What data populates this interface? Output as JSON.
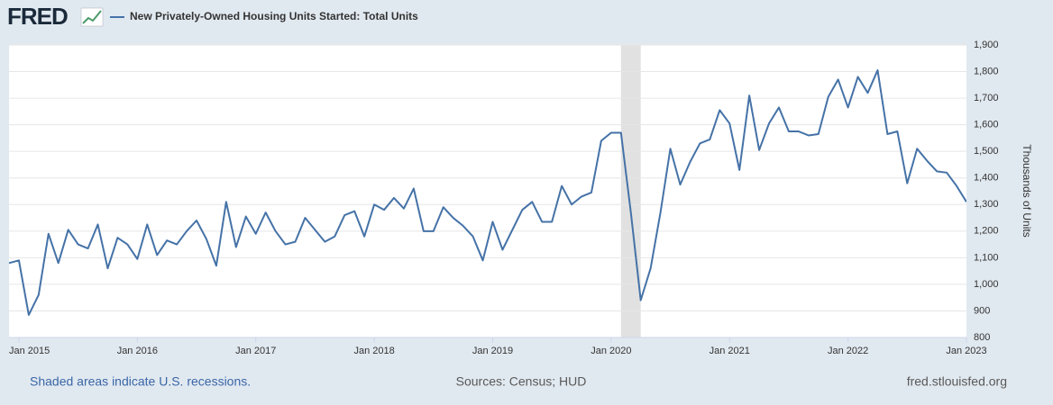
{
  "logo": "FRED",
  "chart_data": {
    "type": "line",
    "title": "New Privately-Owned Housing Units Started: Total Units",
    "y_axis_label": "Thousands of Units",
    "note": "Shaded areas indicate U.S. recessions.",
    "source": "Sources: Census; HUD",
    "site": "fred.stlouisfed.org",
    "x": [
      "2014-12",
      "2015-01",
      "2015-02",
      "2015-03",
      "2015-04",
      "2015-05",
      "2015-06",
      "2015-07",
      "2015-08",
      "2015-09",
      "2015-10",
      "2015-11",
      "2015-12",
      "2016-01",
      "2016-02",
      "2016-03",
      "2016-04",
      "2016-05",
      "2016-06",
      "2016-07",
      "2016-08",
      "2016-09",
      "2016-10",
      "2016-11",
      "2016-12",
      "2017-01",
      "2017-02",
      "2017-03",
      "2017-04",
      "2017-05",
      "2017-06",
      "2017-07",
      "2017-08",
      "2017-09",
      "2017-10",
      "2017-11",
      "2017-12",
      "2018-01",
      "2018-02",
      "2018-03",
      "2018-04",
      "2018-05",
      "2018-06",
      "2018-07",
      "2018-08",
      "2018-09",
      "2018-10",
      "2018-11",
      "2018-12",
      "2019-01",
      "2019-02",
      "2019-03",
      "2019-04",
      "2019-05",
      "2019-06",
      "2019-07",
      "2019-08",
      "2019-09",
      "2019-10",
      "2019-11",
      "2019-12",
      "2020-01",
      "2020-02",
      "2020-03",
      "2020-04",
      "2020-05",
      "2020-06",
      "2020-07",
      "2020-08",
      "2020-09",
      "2020-10",
      "2020-11",
      "2020-12",
      "2021-01",
      "2021-02",
      "2021-03",
      "2021-04",
      "2021-05",
      "2021-06",
      "2021-07",
      "2021-08",
      "2021-09",
      "2021-10",
      "2021-11",
      "2021-12",
      "2022-01",
      "2022-02",
      "2022-03",
      "2022-04",
      "2022-05",
      "2022-06",
      "2022-07",
      "2022-08",
      "2022-09",
      "2022-10",
      "2022-11",
      "2022-12",
      "2023-01"
    ],
    "series": [
      {
        "name": "New Privately-Owned Housing Units Started: Total Units",
        "color": "#4572a7",
        "values": [
          1080,
          1090,
          885,
          960,
          1190,
          1080,
          1205,
          1150,
          1135,
          1225,
          1060,
          1175,
          1150,
          1095,
          1225,
          1110,
          1165,
          1150,
          1200,
          1240,
          1170,
          1070,
          1310,
          1140,
          1255,
          1190,
          1270,
          1200,
          1150,
          1160,
          1250,
          1205,
          1160,
          1180,
          1260,
          1275,
          1180,
          1300,
          1280,
          1325,
          1285,
          1360,
          1200,
          1200,
          1290,
          1250,
          1220,
          1180,
          1090,
          1235,
          1130,
          1205,
          1280,
          1310,
          1235,
          1235,
          1370,
          1300,
          1330,
          1345,
          1540,
          1570,
          1570,
          1270,
          940,
          1060,
          1270,
          1510,
          1375,
          1460,
          1530,
          1545,
          1655,
          1605,
          1430,
          1710,
          1505,
          1605,
          1665,
          1575,
          1575,
          1560,
          1565,
          1705,
          1770,
          1665,
          1780,
          1720,
          1805,
          1565,
          1575,
          1380,
          1510,
          1465,
          1425,
          1420,
          1370,
          1310
        ]
      }
    ],
    "recessions": [
      {
        "start": "2020-02",
        "end": "2020-04"
      }
    ],
    "recession_color": "#e1e1e1",
    "xlim": [
      "2014-12",
      "2023-01"
    ],
    "xticks": [
      {
        "value": "2015-01",
        "label": "Jan 2015"
      },
      {
        "value": "2016-01",
        "label": "Jan 2016"
      },
      {
        "value": "2017-01",
        "label": "Jan 2017"
      },
      {
        "value": "2018-01",
        "label": "Jan 2018"
      },
      {
        "value": "2019-01",
        "label": "Jan 2019"
      },
      {
        "value": "2020-01",
        "label": "Jan 2020"
      },
      {
        "value": "2021-01",
        "label": "Jan 2021"
      },
      {
        "value": "2022-01",
        "label": "Jan 2022"
      },
      {
        "value": "2023-01",
        "label": "Jan 2023"
      }
    ],
    "ylim": [
      800,
      1900
    ],
    "yticks": [
      800,
      900,
      {
        "value": 1000,
        "label": "1,000"
      },
      {
        "value": 1100,
        "label": "1,100"
      },
      {
        "value": 1200,
        "label": "1,200"
      },
      {
        "value": 1300,
        "label": "1,300"
      },
      {
        "value": 1400,
        "label": "1,400"
      },
      {
        "value": 1500,
        "label": "1,500"
      },
      {
        "value": 1600,
        "label": "1,600"
      },
      {
        "value": 1700,
        "label": "1,700"
      },
      {
        "value": 1800,
        "label": "1,800"
      },
      {
        "value": 1900,
        "label": "1,900"
      }
    ],
    "grid": true
  }
}
